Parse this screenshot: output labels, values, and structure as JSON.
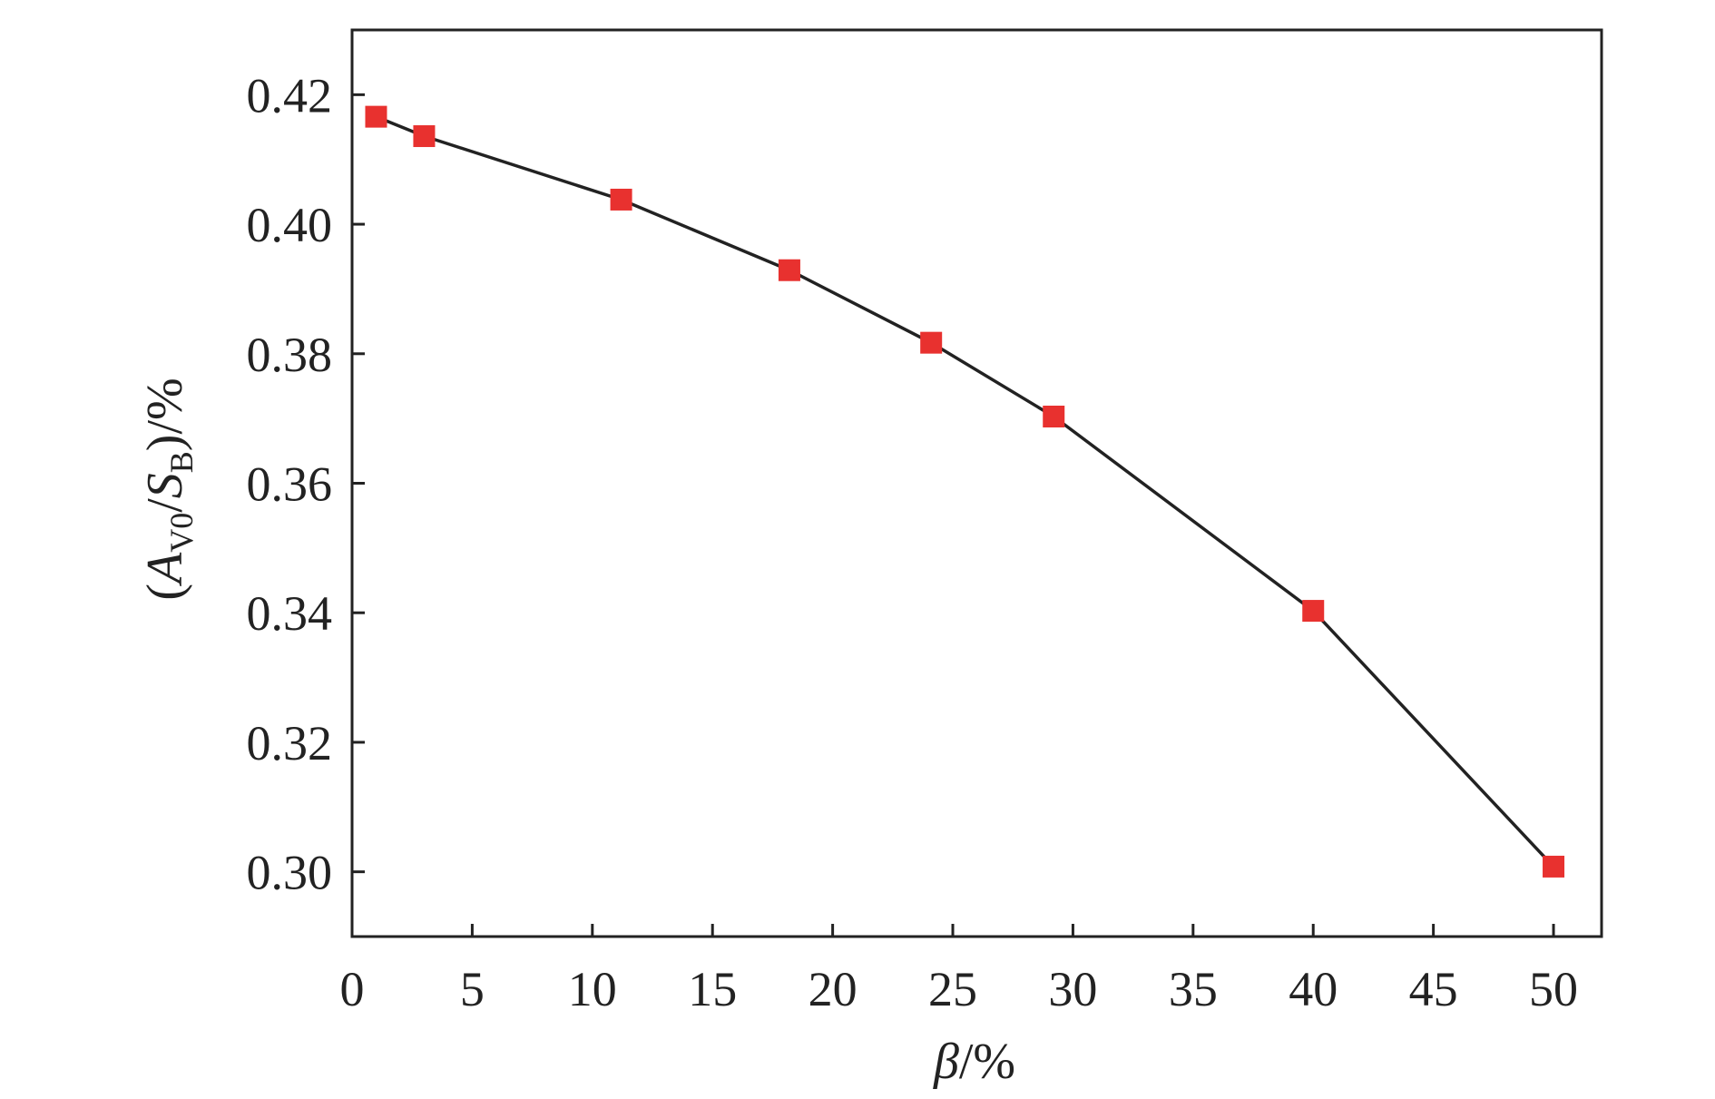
{
  "chart_data": {
    "type": "line",
    "title": "",
    "xlabel": {
      "symbol": "β",
      "unit": "/%"
    },
    "ylabel": {
      "open": "(",
      "a": "A",
      "a_sub": "V0",
      "slash": "/",
      "s": "S",
      "s_sub": "B",
      "close": ")/%"
    },
    "xlim": [
      0,
      52
    ],
    "ylim": [
      0.29,
      0.43
    ],
    "xticks": [
      0,
      5,
      10,
      15,
      20,
      25,
      30,
      35,
      40,
      45,
      50
    ],
    "xtick_labels": [
      "0",
      "5",
      "10",
      "15",
      "20",
      "25",
      "30",
      "35",
      "40",
      "45",
      "50"
    ],
    "yticks": [
      0.3,
      0.32,
      0.34,
      0.36,
      0.38,
      0.4,
      0.42
    ],
    "ytick_labels": [
      "0.30",
      "0.32",
      "0.34",
      "0.36",
      "0.38",
      "0.40",
      "0.42"
    ],
    "grid": false,
    "legend": "none",
    "series": [
      {
        "x": [
          1,
          3,
          11.2,
          18.2,
          24.1,
          29.2,
          40,
          50
        ],
        "y": [
          0.4166,
          0.4136,
          0.4038,
          0.3929,
          0.3817,
          0.3703,
          0.3403,
          0.3008
        ],
        "line_color": "#222222",
        "marker": "square",
        "marker_color": "#e8312f"
      }
    ]
  }
}
